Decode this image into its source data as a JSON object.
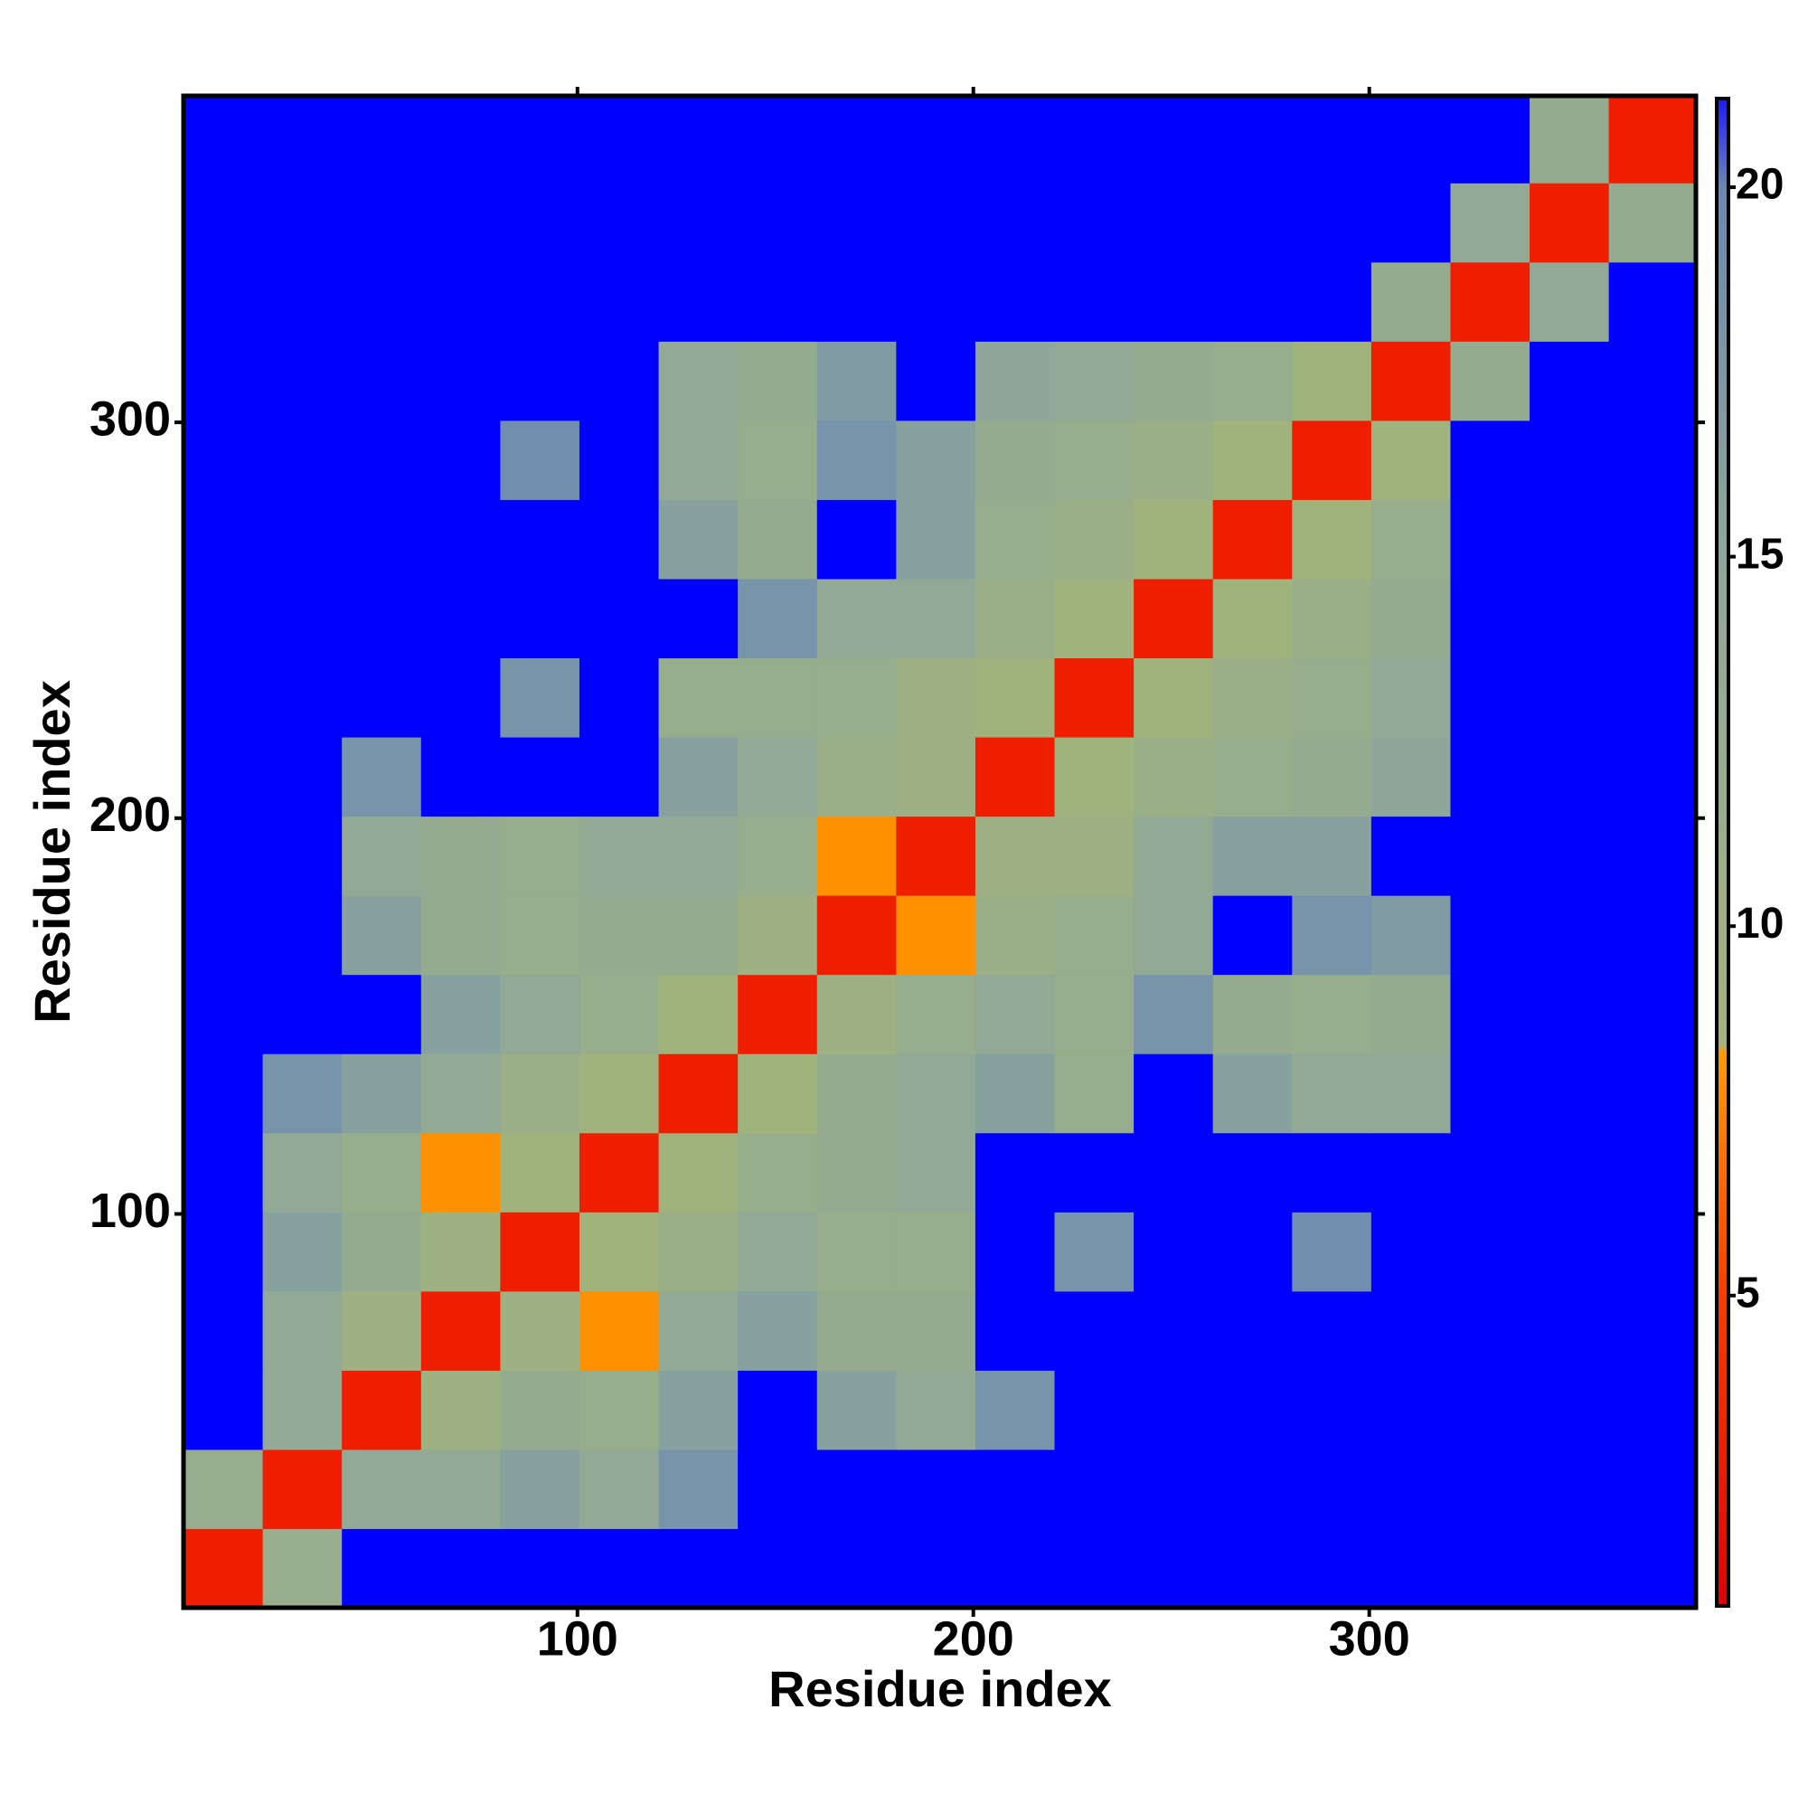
{
  "chart_data": {
    "type": "heatmap",
    "x_label": "Residue index",
    "y_label": "Residue index",
    "xbins": [
      0.5,
      20.5,
      40.5,
      60.5,
      80.5,
      100.5,
      120.5,
      140.5,
      160.5,
      180.5,
      200.5,
      220.5,
      240.5,
      260.5,
      280.5,
      300.5,
      320.5,
      340.5,
      360.5,
      382.5
    ],
    "ybins": [
      0.5,
      20.5,
      40.5,
      60.5,
      80.5,
      100.5,
      120.5,
      140.5,
      160.5,
      180.5,
      200.5,
      220.5,
      240.5,
      260.5,
      280.5,
      300.5,
      320.5,
      340.5,
      360.5,
      382.5
    ],
    "z": [
      [
        3,
        12,
        22,
        22,
        22,
        22,
        22,
        22,
        22,
        22,
        22,
        22,
        22,
        22,
        22,
        22,
        22,
        22,
        22
      ],
      [
        12,
        3,
        14,
        14,
        16,
        14,
        18,
        22,
        22,
        22,
        22,
        22,
        22,
        22,
        22,
        22,
        22,
        22,
        22
      ],
      [
        22,
        14,
        3,
        10,
        13,
        12,
        16,
        22,
        16,
        14,
        18,
        22,
        22,
        22,
        22,
        22,
        22,
        22,
        22
      ],
      [
        22,
        14,
        10,
        3,
        10,
        8,
        14,
        16,
        13,
        13,
        22,
        22,
        22,
        22,
        22,
        22,
        22,
        22,
        22
      ],
      [
        22,
        16,
        13,
        10,
        3,
        9,
        11,
        14,
        12,
        12,
        22,
        18,
        22,
        22,
        19,
        22,
        22,
        22,
        22
      ],
      [
        22,
        14,
        12,
        8,
        9,
        3,
        9,
        12,
        13,
        14,
        22,
        22,
        22,
        22,
        22,
        22,
        22,
        22,
        22
      ],
      [
        22,
        18,
        16,
        14,
        11,
        9,
        3,
        9,
        13,
        14,
        16,
        12,
        22,
        16,
        14,
        14,
        22,
        22,
        22
      ],
      [
        22,
        22,
        22,
        16,
        14,
        12,
        9,
        3,
        10,
        12,
        14,
        12,
        18,
        13,
        12,
        13,
        22,
        22,
        22
      ],
      [
        22,
        22,
        16,
        13,
        12,
        13,
        13,
        10,
        3,
        8,
        11,
        12,
        14,
        22,
        18,
        17,
        22,
        22,
        22
      ],
      [
        22,
        22,
        14,
        13,
        12,
        14,
        14,
        12,
        8,
        3,
        10,
        10,
        14,
        16,
        16,
        22,
        22,
        22,
        22
      ],
      [
        22,
        22,
        18,
        22,
        22,
        22,
        16,
        14,
        11,
        10,
        3,
        9,
        11,
        12,
        13,
        15,
        22,
        22,
        22
      ],
      [
        22,
        22,
        22,
        22,
        18,
        22,
        12,
        12,
        12,
        10,
        9,
        3,
        9,
        11,
        12,
        14,
        22,
        22,
        22
      ],
      [
        22,
        22,
        22,
        22,
        22,
        22,
        22,
        18,
        14,
        14,
        11,
        9,
        3,
        9,
        11,
        13,
        22,
        22,
        22
      ],
      [
        22,
        22,
        22,
        22,
        22,
        22,
        16,
        13,
        22,
        16,
        12,
        11,
        9,
        3,
        9,
        12,
        22,
        22,
        22
      ],
      [
        22,
        22,
        22,
        22,
        19,
        22,
        14,
        12,
        18,
        16,
        13,
        12,
        11,
        9,
        3,
        9,
        22,
        22,
        22
      ],
      [
        22,
        22,
        22,
        22,
        22,
        22,
        14,
        13,
        17,
        22,
        15,
        14,
        13,
        12,
        9,
        3,
        13,
        22,
        22
      ],
      [
        22,
        22,
        22,
        22,
        22,
        22,
        22,
        22,
        22,
        22,
        22,
        22,
        22,
        22,
        22,
        13,
        3,
        14,
        22
      ],
      [
        22,
        22,
        22,
        22,
        22,
        22,
        22,
        22,
        22,
        22,
        22,
        22,
        22,
        22,
        22,
        22,
        14,
        3,
        13
      ],
      [
        22,
        22,
        22,
        22,
        22,
        22,
        22,
        22,
        22,
        22,
        22,
        22,
        22,
        22,
        22,
        22,
        22,
        13,
        3
      ]
    ],
    "xlim": [
      0.5,
      382.5
    ],
    "ylim": [
      0.5,
      382.5
    ],
    "xticks": [
      100,
      200,
      300
    ],
    "yticks": [
      100,
      200,
      300
    ],
    "zlim": [
      0.8,
      21.2
    ],
    "zticks": [
      5,
      10,
      15,
      20
    ],
    "colorscale": [
      {
        "value": 0.8,
        "color": "#e00000"
      },
      {
        "value": 5,
        "color": "#ff3a00"
      },
      {
        "value": 8.3,
        "color": "#ff9a00"
      },
      {
        "value": 8.4,
        "color": "#a2b47a"
      },
      {
        "value": 15,
        "color": "#8ea79a"
      },
      {
        "value": 20,
        "color": "#6a88b4"
      },
      {
        "value": 21.2,
        "color": "#1a1aff"
      }
    ],
    "over_color": "#0000ff"
  }
}
